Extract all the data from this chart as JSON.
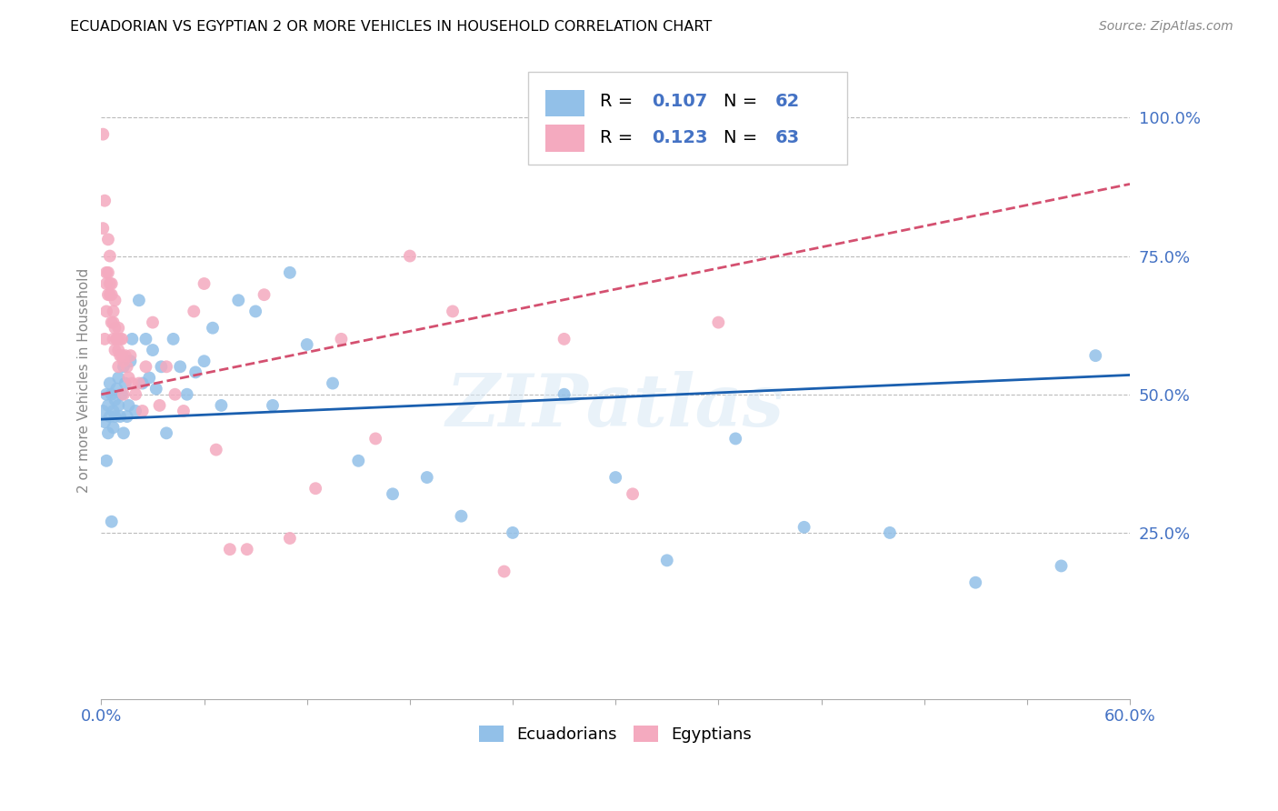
{
  "title": "ECUADORIAN VS EGYPTIAN 2 OR MORE VEHICLES IN HOUSEHOLD CORRELATION CHART",
  "source": "Source: ZipAtlas.com",
  "ylabel": "2 or more Vehicles in Household",
  "watermark": "ZIPatlas",
  "xlim": [
    0.0,
    0.6
  ],
  "ylim": [
    -0.05,
    1.1
  ],
  "xticks": [
    0.0,
    0.06,
    0.12,
    0.18,
    0.24,
    0.3,
    0.36,
    0.42,
    0.48,
    0.54,
    0.6
  ],
  "yticks_right": [
    0.25,
    0.5,
    0.75,
    1.0
  ],
  "ytick_labels_right": [
    "25.0%",
    "50.0%",
    "75.0%",
    "100.0%"
  ],
  "blue_color": "#92C0E8",
  "pink_color": "#F4AABF",
  "blue_line_color": "#1A5FAF",
  "pink_line_color": "#D45070",
  "R_blue": 0.107,
  "N_blue": 62,
  "R_pink": 0.123,
  "N_pink": 63,
  "blue_x": [
    0.001,
    0.002,
    0.003,
    0.004,
    0.004,
    0.005,
    0.005,
    0.006,
    0.007,
    0.007,
    0.008,
    0.008,
    0.009,
    0.01,
    0.01,
    0.011,
    0.012,
    0.013,
    0.013,
    0.014,
    0.015,
    0.016,
    0.017,
    0.018,
    0.02,
    0.022,
    0.024,
    0.026,
    0.028,
    0.03,
    0.032,
    0.035,
    0.038,
    0.042,
    0.046,
    0.05,
    0.055,
    0.06,
    0.065,
    0.07,
    0.08,
    0.09,
    0.1,
    0.11,
    0.12,
    0.135,
    0.15,
    0.17,
    0.19,
    0.21,
    0.24,
    0.27,
    0.3,
    0.33,
    0.37,
    0.41,
    0.46,
    0.51,
    0.56,
    0.58,
    0.003,
    0.006
  ],
  "blue_y": [
    0.47,
    0.45,
    0.5,
    0.48,
    0.43,
    0.52,
    0.46,
    0.5,
    0.47,
    0.44,
    0.49,
    0.46,
    0.51,
    0.48,
    0.53,
    0.46,
    0.5,
    0.55,
    0.43,
    0.52,
    0.46,
    0.48,
    0.56,
    0.6,
    0.47,
    0.67,
    0.52,
    0.6,
    0.53,
    0.58,
    0.51,
    0.55,
    0.43,
    0.6,
    0.55,
    0.5,
    0.54,
    0.56,
    0.62,
    0.48,
    0.67,
    0.65,
    0.48,
    0.72,
    0.59,
    0.52,
    0.38,
    0.32,
    0.35,
    0.28,
    0.25,
    0.5,
    0.35,
    0.2,
    0.42,
    0.26,
    0.25,
    0.16,
    0.19,
    0.57,
    0.38,
    0.27
  ],
  "pink_x": [
    0.001,
    0.002,
    0.003,
    0.003,
    0.004,
    0.004,
    0.005,
    0.005,
    0.006,
    0.006,
    0.007,
    0.007,
    0.008,
    0.008,
    0.009,
    0.01,
    0.01,
    0.011,
    0.012,
    0.013,
    0.014,
    0.015,
    0.016,
    0.017,
    0.018,
    0.02,
    0.022,
    0.024,
    0.026,
    0.03,
    0.034,
    0.038,
    0.043,
    0.048,
    0.054,
    0.06,
    0.067,
    0.075,
    0.085,
    0.095,
    0.11,
    0.125,
    0.14,
    0.16,
    0.18,
    0.205,
    0.235,
    0.27,
    0.31,
    0.36,
    0.001,
    0.002,
    0.003,
    0.004,
    0.005,
    0.006,
    0.007,
    0.008,
    0.009,
    0.01,
    0.011,
    0.012,
    0.013
  ],
  "pink_y": [
    0.97,
    0.6,
    0.7,
    0.65,
    0.72,
    0.68,
    0.68,
    0.75,
    0.63,
    0.7,
    0.65,
    0.6,
    0.62,
    0.58,
    0.6,
    0.58,
    0.55,
    0.57,
    0.6,
    0.56,
    0.57,
    0.55,
    0.53,
    0.57,
    0.52,
    0.5,
    0.52,
    0.47,
    0.55,
    0.63,
    0.48,
    0.55,
    0.5,
    0.47,
    0.65,
    0.7,
    0.4,
    0.22,
    0.22,
    0.68,
    0.24,
    0.33,
    0.6,
    0.42,
    0.75,
    0.65,
    0.18,
    0.6,
    0.32,
    0.63,
    0.8,
    0.85,
    0.72,
    0.78,
    0.7,
    0.68,
    0.63,
    0.67,
    0.6,
    0.62,
    0.6,
    0.57,
    0.5
  ]
}
